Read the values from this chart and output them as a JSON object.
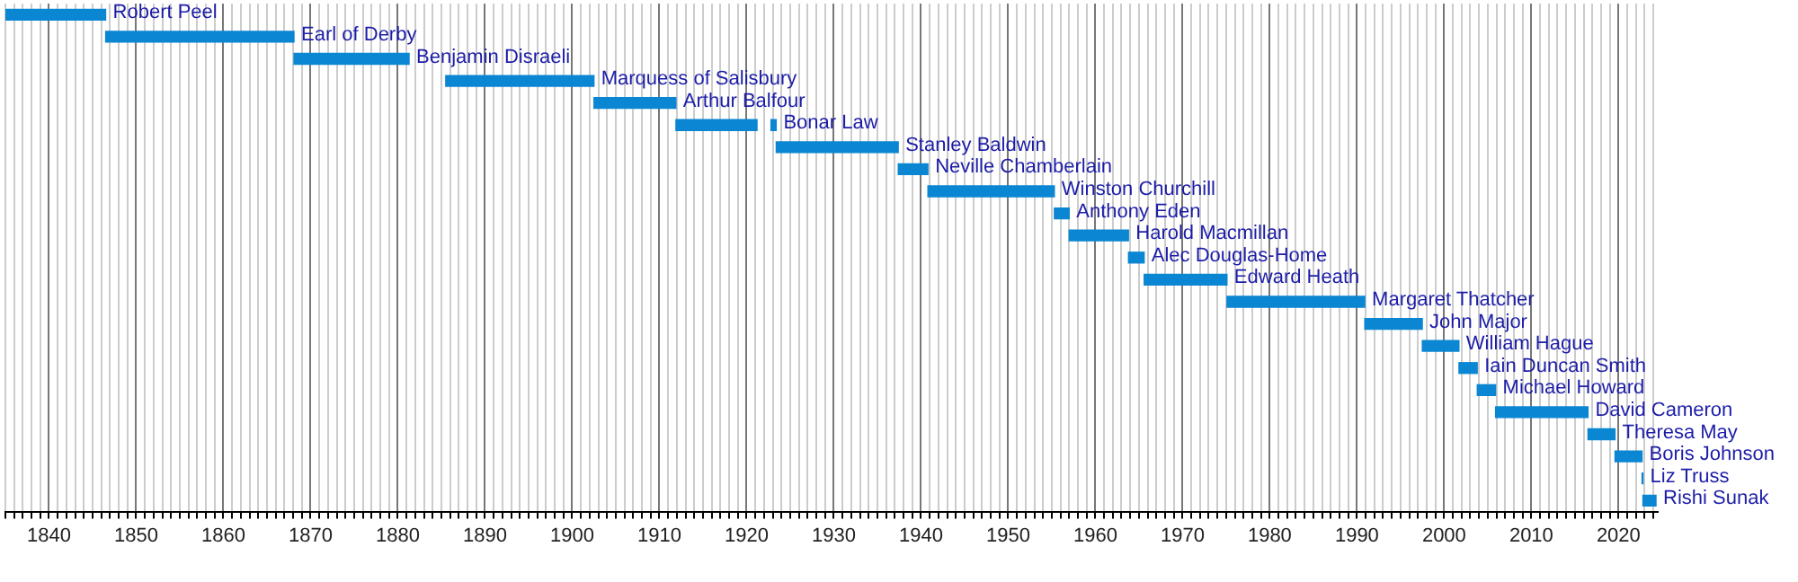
{
  "chart_data": {
    "type": "bar",
    "orientation": "horizontal",
    "tick_labels": "x",
    "grid": "x",
    "legend": false,
    "categories": [
      "Robert Peel",
      "Earl of Derby",
      "Benjamin Disraeli",
      "Marquess of Salisbury",
      "Arthur Balfour",
      "Bonar Law",
      "Stanley Baldwin",
      "Neville Chamberlain",
      "Winston Churchill",
      "Anthony Eden",
      "Harold Macmillan",
      "Alec Douglas-Home",
      "Edward Heath",
      "Margaret Thatcher",
      "John Major",
      "William Hague",
      "Iain Duncan Smith",
      "Michael Howard",
      "David Cameron",
      "Theresa May",
      "Boris Johnson",
      "Liz Truss",
      "Rishi Sunak"
    ],
    "series": [
      {
        "color": "#0a86d2",
        "base": [
          1835,
          1846.5,
          1868.1,
          1885.5,
          1902.5,
          1911.9,
          1923.4,
          1937.4,
          1940.8,
          1955.3,
          1957.0,
          1963.8,
          1965.6,
          1975.1,
          1990.9,
          1997.5,
          2001.7,
          2003.8,
          2005.9,
          2016.5,
          2019.6,
          2022.7,
          2022.8
        ],
        "values": [
          11.5,
          21.6,
          13.2,
          17.0,
          9.4,
          9.3,
          14.0,
          3.4,
          14.5,
          1.7,
          6.8,
          1.8,
          9.5,
          15.8,
          6.6,
          4.2,
          2.1,
          2.1,
          10.6,
          3.1,
          3.1,
          0.1,
          1.5
        ]
      },
      {
        "color": "#0a86d2",
        "base": [
          null,
          null,
          null,
          null,
          null,
          1922.8,
          null,
          null,
          null,
          null,
          null,
          null,
          null,
          null,
          null,
          null,
          null,
          null,
          null,
          null,
          null,
          null,
          null
        ],
        "values": [
          null,
          null,
          null,
          null,
          null,
          0.6,
          null,
          null,
          null,
          null,
          null,
          null,
          null,
          null,
          null,
          null,
          null,
          null,
          null,
          null,
          null,
          null,
          null
        ]
      }
    ],
    "xlim": [
      1835,
      2024.5
    ],
    "xticks": [
      {
        "value": 1835,
        "label": null
      },
      {
        "value": 1836,
        "label": null
      },
      {
        "value": 1837,
        "label": null
      },
      {
        "value": 1838,
        "label": null
      },
      {
        "value": 1839,
        "label": null
      },
      1840,
      {
        "value": 1841,
        "label": null
      },
      {
        "value": 1842,
        "label": null
      },
      {
        "value": 1843,
        "label": null
      },
      {
        "value": 1844,
        "label": null
      },
      {
        "value": 1845,
        "label": null
      },
      {
        "value": 1846,
        "label": null
      },
      {
        "value": 1847,
        "label": null
      },
      {
        "value": 1848,
        "label": null
      },
      {
        "value": 1849,
        "label": null
      },
      1850,
      {
        "value": 1851,
        "label": null
      },
      {
        "value": 1852,
        "label": null
      },
      {
        "value": 1853,
        "label": null
      },
      {
        "value": 1854,
        "label": null
      },
      {
        "value": 1855,
        "label": null
      },
      {
        "value": 1856,
        "label": null
      },
      {
        "value": 1857,
        "label": null
      },
      {
        "value": 1858,
        "label": null
      },
      {
        "value": 1859,
        "label": null
      },
      1860,
      {
        "value": 1861,
        "label": null
      },
      {
        "value": 1862,
        "label": null
      },
      {
        "value": 1863,
        "label": null
      },
      {
        "value": 1864,
        "label": null
      },
      {
        "value": 1865,
        "label": null
      },
      {
        "value": 1866,
        "label": null
      },
      {
        "value": 1867,
        "label": null
      },
      {
        "value": 1868,
        "label": null
      },
      {
        "value": 1869,
        "label": null
      },
      1870,
      {
        "value": 1871,
        "label": null
      },
      {
        "value": 1872,
        "label": null
      },
      {
        "value": 1873,
        "label": null
      },
      {
        "value": 1874,
        "label": null
      },
      {
        "value": 1875,
        "label": null
      },
      {
        "value": 1876,
        "label": null
      },
      {
        "value": 1877,
        "label": null
      },
      {
        "value": 1878,
        "label": null
      },
      {
        "value": 1879,
        "label": null
      },
      1880,
      {
        "value": 1881,
        "label": null
      },
      {
        "value": 1882,
        "label": null
      },
      {
        "value": 1883,
        "label": null
      },
      {
        "value": 1884,
        "label": null
      },
      {
        "value": 1885,
        "label": null
      },
      {
        "value": 1886,
        "label": null
      },
      {
        "value": 1887,
        "label": null
      },
      {
        "value": 1888,
        "label": null
      },
      {
        "value": 1889,
        "label": null
      },
      1890,
      {
        "value": 1891,
        "label": null
      },
      {
        "value": 1892,
        "label": null
      },
      {
        "value": 1893,
        "label": null
      },
      {
        "value": 1894,
        "label": null
      },
      {
        "value": 1895,
        "label": null
      },
      {
        "value": 1896,
        "label": null
      },
      {
        "value": 1897,
        "label": null
      },
      {
        "value": 1898,
        "label": null
      },
      {
        "value": 1899,
        "label": null
      },
      1900,
      {
        "value": 1901,
        "label": null
      },
      {
        "value": 1902,
        "label": null
      },
      {
        "value": 1903,
        "label": null
      },
      {
        "value": 1904,
        "label": null
      },
      {
        "value": 1905,
        "label": null
      },
      {
        "value": 1906,
        "label": null
      },
      {
        "value": 1907,
        "label": null
      },
      {
        "value": 1908,
        "label": null
      },
      {
        "value": 1909,
        "label": null
      },
      1910,
      {
        "value": 1911,
        "label": null
      },
      {
        "value": 1912,
        "label": null
      },
      {
        "value": 1913,
        "label": null
      },
      {
        "value": 1914,
        "label": null
      },
      {
        "value": 1915,
        "label": null
      },
      {
        "value": 1916,
        "label": null
      },
      {
        "value": 1917,
        "label": null
      },
      {
        "value": 1918,
        "label": null
      },
      {
        "value": 1919,
        "label": null
      },
      1920,
      {
        "value": 1921,
        "label": null
      },
      {
        "value": 1922,
        "label": null
      },
      {
        "value": 1923,
        "label": null
      },
      {
        "value": 1924,
        "label": null
      },
      {
        "value": 1925,
        "label": null
      },
      {
        "value": 1926,
        "label": null
      },
      {
        "value": 1927,
        "label": null
      },
      {
        "value": 1928,
        "label": null
      },
      {
        "value": 1929,
        "label": null
      },
      1930,
      {
        "value": 1931,
        "label": null
      },
      {
        "value": 1932,
        "label": null
      },
      {
        "value": 1933,
        "label": null
      },
      {
        "value": 1934,
        "label": null
      },
      {
        "value": 1935,
        "label": null
      },
      {
        "value": 1936,
        "label": null
      },
      {
        "value": 1937,
        "label": null
      },
      {
        "value": 1938,
        "label": null
      },
      {
        "value": 1939,
        "label": null
      },
      1940,
      {
        "value": 1941,
        "label": null
      },
      {
        "value": 1942,
        "label": null
      },
      {
        "value": 1943,
        "label": null
      },
      {
        "value": 1944,
        "label": null
      },
      {
        "value": 1945,
        "label": null
      },
      {
        "value": 1946,
        "label": null
      },
      {
        "value": 1947,
        "label": null
      },
      {
        "value": 1948,
        "label": null
      },
      {
        "value": 1949,
        "label": null
      },
      1950,
      {
        "value": 1951,
        "label": null
      },
      {
        "value": 1952,
        "label": null
      },
      {
        "value": 1953,
        "label": null
      },
      {
        "value": 1954,
        "label": null
      },
      {
        "value": 1955,
        "label": null
      },
      {
        "value": 1956,
        "label": null
      },
      {
        "value": 1957,
        "label": null
      },
      {
        "value": 1958,
        "label": null
      },
      {
        "value": 1959,
        "label": null
      },
      1960,
      {
        "value": 1961,
        "label": null
      },
      {
        "value": 1962,
        "label": null
      },
      {
        "value": 1963,
        "label": null
      },
      {
        "value": 1964,
        "label": null
      },
      {
        "value": 1965,
        "label": null
      },
      {
        "value": 1966,
        "label": null
      },
      {
        "value": 1967,
        "label": null
      },
      {
        "value": 1968,
        "label": null
      },
      {
        "value": 1969,
        "label": null
      },
      1970,
      {
        "value": 1971,
        "label": null
      },
      {
        "value": 1972,
        "label": null
      },
      {
        "value": 1973,
        "label": null
      },
      {
        "value": 1974,
        "label": null
      },
      {
        "value": 1975,
        "label": null
      },
      {
        "value": 1976,
        "label": null
      },
      {
        "value": 1977,
        "label": null
      },
      {
        "value": 1978,
        "label": null
      },
      {
        "value": 1979,
        "label": null
      },
      1980,
      {
        "value": 1981,
        "label": null
      },
      {
        "value": 1982,
        "label": null
      },
      {
        "value": 1983,
        "label": null
      },
      {
        "value": 1984,
        "label": null
      },
      {
        "value": 1985,
        "label": null
      },
      {
        "value": 1986,
        "label": null
      },
      {
        "value": 1987,
        "label": null
      },
      {
        "value": 1988,
        "label": null
      },
      {
        "value": 1989,
        "label": null
      },
      1990,
      {
        "value": 1991,
        "label": null
      },
      {
        "value": 1992,
        "label": null
      },
      {
        "value": 1993,
        "label": null
      },
      {
        "value": 1994,
        "label": null
      },
      {
        "value": 1995,
        "label": null
      },
      {
        "value": 1996,
        "label": null
      },
      {
        "value": 1997,
        "label": null
      },
      {
        "value": 1998,
        "label": null
      },
      {
        "value": 1999,
        "label": null
      },
      2000,
      {
        "value": 2001,
        "label": null
      },
      {
        "value": 2002,
        "label": null
      },
      {
        "value": 2003,
        "label": null
      },
      {
        "value": 2004,
        "label": null
      },
      {
        "value": 2005,
        "label": null
      },
      {
        "value": 2006,
        "label": null
      },
      {
        "value": 2007,
        "label": null
      },
      {
        "value": 2008,
        "label": null
      },
      {
        "value": 2009,
        "label": null
      },
      2010,
      {
        "value": 2011,
        "label": null
      },
      {
        "value": 2012,
        "label": null
      },
      {
        "value": 2013,
        "label": null
      },
      {
        "value": 2014,
        "label": null
      },
      {
        "value": 2015,
        "label": null
      },
      {
        "value": 2016,
        "label": null
      },
      {
        "value": 2017,
        "label": null
      },
      {
        "value": 2018,
        "label": null
      },
      {
        "value": 2019,
        "label": null
      },
      2020,
      {
        "value": 2021,
        "label": null
      },
      {
        "value": 2022,
        "label": null
      },
      {
        "value": 2023,
        "label": null
      },
      {
        "value": 2024,
        "label": null
      }
    ]
  }
}
